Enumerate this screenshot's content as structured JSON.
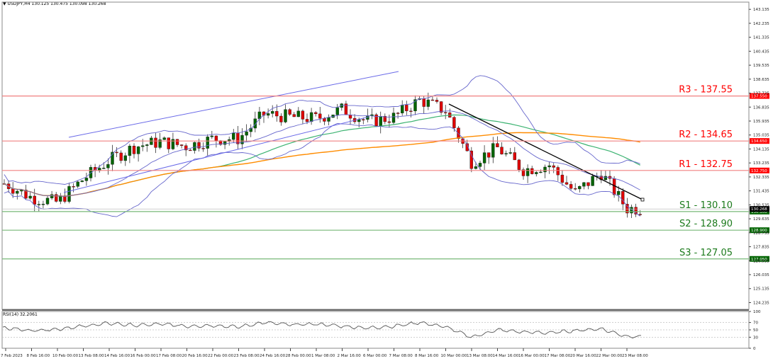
{
  "header": {
    "symbol": "USDJPY,H4",
    "ohlc": "130.125 130.475 130.098 130.268",
    "title": "USDJPY,H4  130.125 130.475 130.098 130.268"
  },
  "rsi_label": "RSI(14) 32.2061",
  "colors": {
    "bull": "#006400",
    "bear": "#e00000",
    "resistance": "#ff0000",
    "resistance_line": "#f08080",
    "support": "#1b7a1b",
    "support_line": "#78b878",
    "bollinger": "#6666cc",
    "ma_fast": "#3cb371",
    "ma_slow": "#ff8c00",
    "channel": "#6a6ae8",
    "trendline": "#000000",
    "rsi": "#555555",
    "grid": "#c0c0c0"
  },
  "chart_data": [
    {
      "type": "candlestick",
      "title": "USDJPY,H4",
      "ohlc_last": {
        "open": 130.125,
        "high": 130.475,
        "low": 130.098,
        "close": 130.268
      },
      "ylim": [
        123.8,
        143.6
      ],
      "y_ticks": [
        "143.135",
        "142.235",
        "141.335",
        "140.435",
        "139.535",
        "138.635",
        "137.735",
        "136.835",
        "135.935",
        "135.035",
        "134.135",
        "133.235",
        "132.335",
        "131.435",
        "130.535",
        "129.635",
        "128.735",
        "127.835",
        "126.935",
        "126.035",
        "125.135",
        "124.235"
      ],
      "x_ticks": [
        "7 Feb 2023",
        "8 Feb 16:00",
        "10 Feb 00:00",
        "13 Feb 08:00",
        "14 Feb 16:00",
        "16 Feb 00:00",
        "17 Feb 08:00",
        "20 Feb 16:00",
        "22 Feb 00:00",
        "23 Feb 08:00",
        "24 Feb 16:00",
        "28 Feb 00:00",
        "1 Mar 08:00",
        "2 Mar 16:00",
        "6 Mar 00:00",
        "7 Mar 08:00",
        "8 Mar 16:00",
        "10 Mar 00:00",
        "13 Mar 08:00",
        "14 Mar 16:00",
        "16 Mar 00:00",
        "17 Mar 08:00",
        "20 Mar 16:00",
        "22 Mar 00:00",
        "23 Mar 08:00"
      ],
      "levels": [
        {
          "name": "R3",
          "label": "R3 - 137.55",
          "value": 137.55,
          "tag": "137.550",
          "kind": "resistance"
        },
        {
          "name": "R2",
          "label": "R2 - 134.65",
          "value": 134.65,
          "tag": "134.650",
          "kind": "resistance"
        },
        {
          "name": "R1",
          "label": "R1 - 132.75",
          "value": 132.75,
          "tag": "132.750",
          "kind": "resistance"
        },
        {
          "name": "S1",
          "label": "S1 - 130.10",
          "value": 130.1,
          "tag": "130.100",
          "kind": "support"
        },
        {
          "name": "S2",
          "label": "S2 - 128.90",
          "value": 128.9,
          "tag": "128.900",
          "kind": "support"
        },
        {
          "name": "S3",
          "label": "S3 - 127.05",
          "value": 127.05,
          "tag": "127.050",
          "kind": "support"
        }
      ],
      "current_price_tag": "130.268",
      "indicators": [
        "Bollinger Bands",
        "Moving Average (fast, green)",
        "Moving Average (slow, orange)",
        "Upward channel line",
        "Downward trendline"
      ],
      "approx_close_path": [
        {
          "x": "7 Feb 2023",
          "close": 131.9
        },
        {
          "x": "8 Feb 16:00",
          "close": 131.0
        },
        {
          "x": "10 Feb 00:00",
          "close": 130.7
        },
        {
          "x": "13 Feb 08:00",
          "close": 132.2
        },
        {
          "x": "14 Feb 16:00",
          "close": 133.4
        },
        {
          "x": "16 Feb 00:00",
          "close": 134.3
        },
        {
          "x": "17 Feb 08:00",
          "close": 134.6
        },
        {
          "x": "20 Feb 16:00",
          "close": 134.3
        },
        {
          "x": "22 Feb 00:00",
          "close": 134.8
        },
        {
          "x": "23 Feb 08:00",
          "close": 134.8
        },
        {
          "x": "24 Feb 16:00",
          "close": 136.4
        },
        {
          "x": "28 Feb 00:00",
          "close": 136.2
        },
        {
          "x": "1 Mar 08:00",
          "close": 136.1
        },
        {
          "x": "2 Mar 16:00",
          "close": 136.7
        },
        {
          "x": "6 Mar 00:00",
          "close": 135.9
        },
        {
          "x": "7 Mar 08:00",
          "close": 136.2
        },
        {
          "x": "8 Mar 16:00",
          "close": 137.3
        },
        {
          "x": "10 Mar 00:00",
          "close": 136.6
        },
        {
          "x": "13 Mar 08:00",
          "close": 133.3
        },
        {
          "x": "14 Mar 16:00",
          "close": 134.2
        },
        {
          "x": "16 Mar 00:00",
          "close": 132.8
        },
        {
          "x": "17 Mar 08:00",
          "close": 133.1
        },
        {
          "x": "20 Mar 16:00",
          "close": 131.3
        },
        {
          "x": "22 Mar 00:00",
          "close": 132.6
        },
        {
          "x": "23 Mar 08:00",
          "close": 130.3
        }
      ]
    },
    {
      "type": "line",
      "title": "RSI(14) 32.2061",
      "ylim": [
        0,
        100
      ],
      "y_ticks": [
        "100",
        "70",
        "50",
        "30",
        "0"
      ],
      "grid_levels": [
        70,
        50,
        30
      ],
      "last_value": 32.2061,
      "x": [
        "7 Feb 2023",
        "8 Feb 16:00",
        "10 Feb 00:00",
        "13 Feb 08:00",
        "14 Feb 16:00",
        "16 Feb 00:00",
        "17 Feb 08:00",
        "20 Feb 16:00",
        "22 Feb 00:00",
        "23 Feb 08:00",
        "24 Feb 16:00",
        "28 Feb 00:00",
        "1 Mar 08:00",
        "2 Mar 16:00",
        "6 Mar 00:00",
        "7 Mar 08:00",
        "8 Mar 16:00",
        "10 Mar 00:00",
        "13 Mar 08:00",
        "14 Mar 16:00",
        "16 Mar 00:00",
        "17 Mar 08:00",
        "20 Mar 16:00",
        "22 Mar 00:00",
        "23 Mar 08:00"
      ],
      "values": [
        55,
        48,
        52,
        60,
        68,
        62,
        66,
        60,
        62,
        58,
        70,
        64,
        66,
        60,
        55,
        60,
        70,
        58,
        30,
        50,
        44,
        42,
        48,
        53,
        32
      ]
    }
  ]
}
